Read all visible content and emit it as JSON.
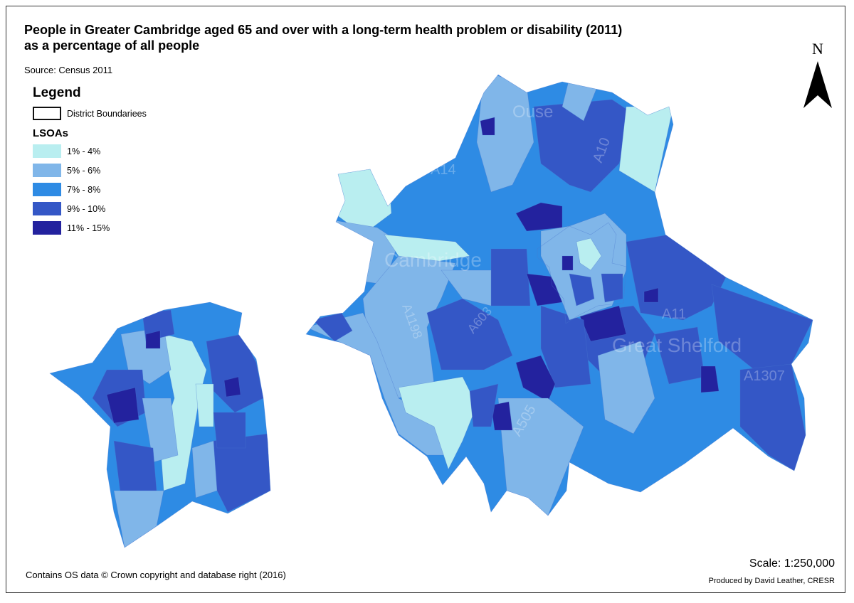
{
  "title_line1": "People in Greater Cambridge aged 65 and over with a long-term health problem or disability (2011)",
  "title_line2": "as a percentage of all people",
  "source": "Source: Census 2011",
  "legend": {
    "heading": "Legend",
    "boundary_label": "District Boundariees",
    "lsoa_heading": "LSOAs",
    "classes": [
      {
        "label": "1% - 4%",
        "color": "#b9eef0"
      },
      {
        "label": "5% - 6%",
        "color": "#80b6e9"
      },
      {
        "label": "7% - 8%",
        "color": "#2e8be4"
      },
      {
        "label": "9% - 10%",
        "color": "#3457c6"
      },
      {
        "label": "11% - 15%",
        "color": "#23229e"
      }
    ]
  },
  "north_label": "N",
  "basemap_labels": {
    "cambridge": "Cambridge",
    "shelford": "Great Shelford",
    "a14": "A14",
    "a10": "A10",
    "a11": "A11",
    "a505": "A505",
    "a1198": "A1198",
    "a1307": "A1307",
    "a603": "A603",
    "ouse": "Ouse"
  },
  "scale": "Scale: 1:250,000",
  "produced_by": "Produced by David Leather, CRESR",
  "copyright": "Contains OS data © Crown copyright and database right (2016)"
}
